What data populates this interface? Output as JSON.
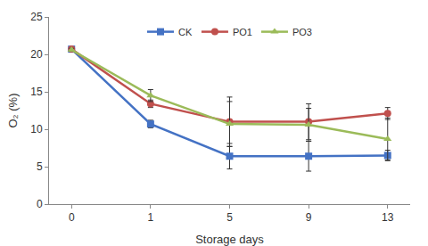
{
  "chart_data": {
    "type": "line",
    "x_label": "Storage days",
    "y_label": "O₂ (%)",
    "categories": [
      "0",
      "1",
      "5",
      "9",
      "13"
    ],
    "series": [
      {
        "name": "CK",
        "color": "#4472c4",
        "marker": "square",
        "values": [
          20.7,
          10.7,
          6.4,
          6.4,
          6.5
        ],
        "errors": [
          0.2,
          0.5,
          1.7,
          2.0,
          0.7
        ]
      },
      {
        "name": "PO1",
        "color": "#c0504d",
        "marker": "circle",
        "values": [
          20.7,
          13.4,
          11.0,
          11.0,
          12.1
        ],
        "errors": [
          0.2,
          0.5,
          3.3,
          2.4,
          0.8
        ]
      },
      {
        "name": "PO3",
        "color": "#9bbb59",
        "marker": "triangle-up",
        "values": [
          20.6,
          14.5,
          10.7,
          10.6,
          8.7
        ],
        "errors": [
          0.2,
          0.8,
          3.0,
          2.2,
          2.8
        ]
      }
    ],
    "ylim": [
      0,
      25
    ],
    "yticks": [
      0,
      5,
      10,
      15,
      20,
      25
    ],
    "grid": false,
    "legend": "top"
  }
}
